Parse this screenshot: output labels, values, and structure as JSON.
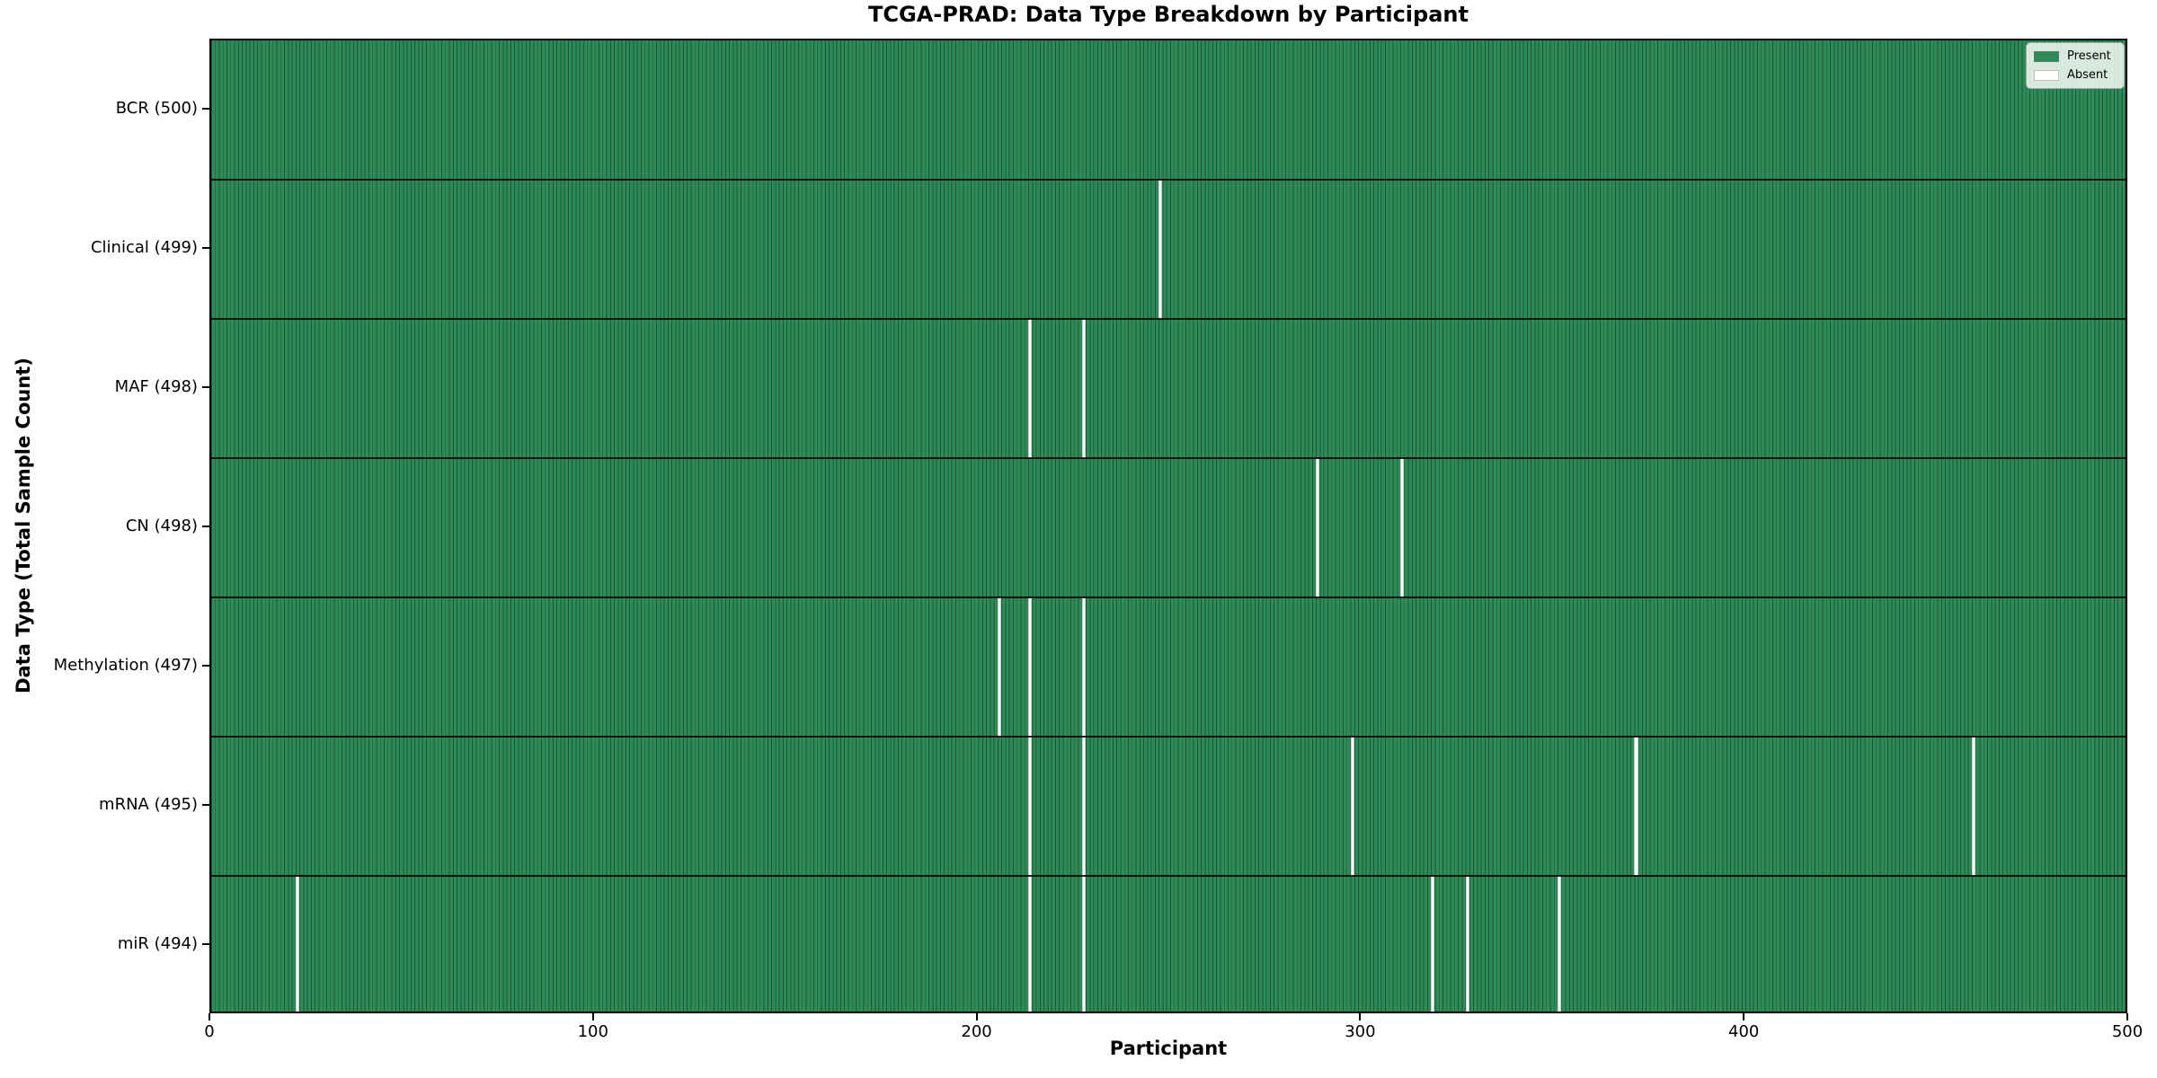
{
  "figure": {
    "title": "TCGA-PRAD: Data Type Breakdown by Participant",
    "x_axis_label": "Participant",
    "y_axis_label": "Data Type (Total Sample Count)"
  },
  "legend": {
    "items": [
      {
        "label": "Present",
        "color": "#2e8b57"
      },
      {
        "label": "Absent",
        "color": "#ffffff"
      }
    ]
  },
  "colors": {
    "present_fill": "#2e8b57",
    "bar_edge": "#1d5838",
    "absent_fill": "#ffffff",
    "plot_border": "#000000"
  },
  "chart_data": {
    "type": "heatmap",
    "title": "TCGA-PRAD: Data Type Breakdown by Participant",
    "xlabel": "Participant",
    "ylabel": "Data Type (Total Sample Count)",
    "x_range": [
      0,
      500
    ],
    "x_ticks": [
      0,
      100,
      200,
      300,
      400,
      500
    ],
    "n_participants": 500,
    "cell_states": [
      "Present",
      "Absent"
    ],
    "rows": [
      {
        "label": "BCR (500)",
        "name": "BCR",
        "total": 500,
        "absent_participants": []
      },
      {
        "label": "Clinical (499)",
        "name": "Clinical",
        "total": 499,
        "absent_participants": [
          247
        ]
      },
      {
        "label": "MAF (498)",
        "name": "MAF",
        "total": 498,
        "absent_participants": [
          213,
          227
        ]
      },
      {
        "label": "CN (498)",
        "name": "CN",
        "total": 498,
        "absent_participants": [
          288,
          310
        ]
      },
      {
        "label": "Methylation (497)",
        "name": "Methylation",
        "total": 497,
        "absent_participants": [
          205,
          213,
          227
        ]
      },
      {
        "label": "mRNA (495)",
        "name": "mRNA",
        "total": 495,
        "absent_participants": [
          213,
          227,
          297,
          371,
          459
        ]
      },
      {
        "label": "miR (494)",
        "name": "miR",
        "total": 494,
        "absent_participants": [
          22,
          213,
          227,
          318,
          327,
          351
        ]
      }
    ],
    "legend_position": "upper right",
    "grid": false
  }
}
